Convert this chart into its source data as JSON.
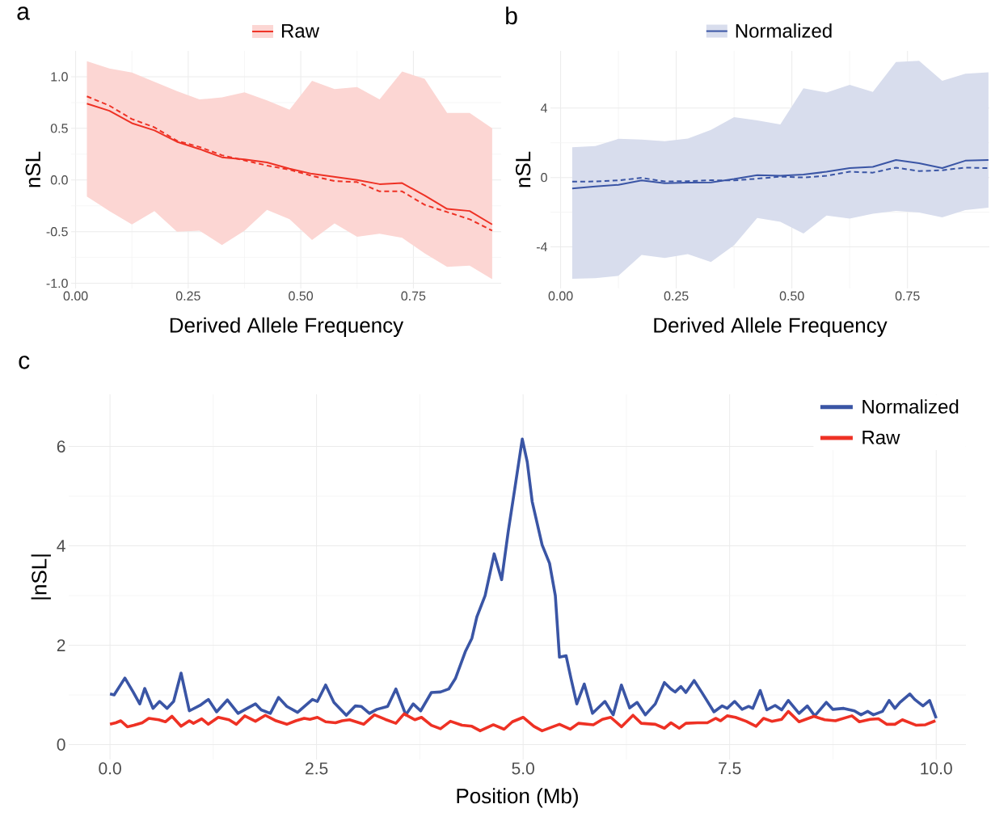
{
  "chart_data": [
    {
      "type": "line",
      "annotations": [
        "a"
      ],
      "xlabel": "Derived Allele Frequency",
      "ylabel": "nSL",
      "x": [
        0.025,
        0.075,
        0.125,
        0.175,
        0.225,
        0.275,
        0.325,
        0.375,
        0.425,
        0.475,
        0.525,
        0.575,
        0.625,
        0.675,
        0.725,
        0.775,
        0.825,
        0.875,
        0.925
      ],
      "series": [
        {
          "name": "Raw",
          "color": "#ee3124",
          "values": [
            0.74,
            0.67,
            0.55,
            0.48,
            0.37,
            0.3,
            0.22,
            0.2,
            0.17,
            0.11,
            0.06,
            0.03,
            0.0,
            -0.04,
            -0.03,
            -0.15,
            -0.28,
            -0.3,
            -0.43
          ],
          "upper": [
            1.15,
            1.08,
            1.04,
            0.95,
            0.86,
            0.78,
            0.8,
            0.85,
            0.77,
            0.68,
            0.96,
            0.88,
            0.9,
            0.78,
            1.05,
            0.98,
            0.65,
            0.65,
            0.5
          ],
          "lower": [
            -0.16,
            -0.3,
            -0.43,
            -0.3,
            -0.5,
            -0.49,
            -0.63,
            -0.49,
            -0.29,
            -0.38,
            -0.58,
            -0.42,
            -0.55,
            -0.52,
            -0.56,
            -0.71,
            -0.84,
            -0.83,
            -0.96
          ]
        },
        {
          "color": "#ee3124",
          "line_style": "dashed",
          "values": [
            0.81,
            0.72,
            0.59,
            0.51,
            0.38,
            0.32,
            0.24,
            0.19,
            0.14,
            0.1,
            0.04,
            -0.01,
            -0.02,
            -0.11,
            -0.11,
            -0.24,
            -0.31,
            -0.38,
            -0.49
          ]
        }
      ],
      "xlim": [
        -0.01,
        0.945
      ],
      "ylim": [
        -1.05,
        1.25
      ],
      "xticks": [
        {
          "value": 0,
          "label": "0.00"
        },
        {
          "value": 0.25,
          "label": "0.25"
        },
        {
          "value": 0.5,
          "label": "0.50"
        },
        {
          "value": 0.75,
          "label": "0.75"
        }
      ],
      "yticks": [
        {
          "value": -1,
          "label": "-1.0"
        },
        {
          "value": -0.5,
          "label": "-0.5"
        },
        {
          "value": 0,
          "label": "0.0"
        },
        {
          "value": 0.5,
          "label": "0.5"
        },
        {
          "value": 1,
          "label": "1.0"
        }
      ],
      "grid": true,
      "legend": "top"
    },
    {
      "type": "line",
      "annotations": [
        "b"
      ],
      "xlabel": "Derived Allele Frequency",
      "ylabel": "nSL",
      "x": [
        0.025,
        0.075,
        0.125,
        0.175,
        0.225,
        0.275,
        0.325,
        0.375,
        0.425,
        0.475,
        0.525,
        0.575,
        0.625,
        0.675,
        0.725,
        0.775,
        0.825,
        0.875,
        0.925
      ],
      "series": [
        {
          "name": "Normalized",
          "color": "#3a55a5",
          "values": [
            -0.63,
            -0.52,
            -0.42,
            -0.17,
            -0.33,
            -0.3,
            -0.28,
            -0.09,
            0.14,
            0.1,
            0.17,
            0.33,
            0.54,
            0.61,
            1.01,
            0.82,
            0.54,
            0.97,
            1.01
          ],
          "upper": [
            1.74,
            1.81,
            2.23,
            2.19,
            2.09,
            2.24,
            2.75,
            3.48,
            3.29,
            3.06,
            5.15,
            4.9,
            5.34,
            4.94,
            6.66,
            6.73,
            5.57,
            5.98,
            6.07
          ],
          "lower": [
            -5.84,
            -5.81,
            -5.67,
            -4.47,
            -4.64,
            -4.42,
            -4.87,
            -3.91,
            -2.33,
            -2.56,
            -3.23,
            -2.19,
            -2.37,
            -2.09,
            -1.93,
            -2.02,
            -2.3,
            -1.88,
            -1.74
          ]
        },
        {
          "color": "#3a55a5",
          "line_style": "dashed",
          "values": [
            -0.24,
            -0.23,
            -0.17,
            -0.02,
            -0.23,
            -0.21,
            -0.16,
            -0.17,
            -0.07,
            0.05,
            0.0,
            0.1,
            0.33,
            0.28,
            0.57,
            0.37,
            0.42,
            0.57,
            0.54
          ]
        }
      ],
      "xlim": [
        -0.022,
        0.927
      ],
      "ylim": [
        -6.4,
        7.3
      ],
      "xticks": [
        {
          "value": 0,
          "label": "0.00"
        },
        {
          "value": 0.25,
          "label": "0.25"
        },
        {
          "value": 0.5,
          "label": "0.50"
        },
        {
          "value": 0.75,
          "label": "0.75"
        }
      ],
      "yticks": [
        -4,
        0,
        4
      ],
      "grid": true,
      "legend": "top"
    },
    {
      "type": "line",
      "annotations": [
        "c"
      ],
      "xlabel": "Position (Mb)",
      "ylabel": "|nSL|",
      "series": [
        {
          "name": "Normalized",
          "color": "#3a55a5",
          "x": [
            0,
            0.05,
            0.18,
            0.28,
            0.36,
            0.42,
            0.52,
            0.6,
            0.69,
            0.77,
            0.86,
            0.96,
            1.09,
            1.19,
            1.29,
            1.42,
            1.55,
            1.66,
            1.76,
            1.83,
            1.94,
            2.04,
            2.14,
            2.27,
            2.45,
            2.51,
            2.61,
            2.71,
            2.86,
            2.97,
            3.04,
            3.14,
            3.23,
            3.36,
            3.46,
            3.58,
            3.67,
            3.76,
            3.89,
            4.0,
            4.1,
            4.18,
            4.3,
            4.38,
            4.44,
            4.54,
            4.65,
            4.74,
            4.82,
            4.9,
            4.99,
            5.05,
            5.11,
            5.23,
            5.32,
            5.39,
            5.44,
            5.52,
            5.58,
            5.65,
            5.74,
            5.84,
            5.99,
            6.09,
            6.19,
            6.29,
            6.38,
            6.48,
            6.6,
            6.71,
            6.79,
            6.84,
            6.91,
            6.97,
            7.07,
            7.16,
            7.31,
            7.41,
            7.47,
            7.56,
            7.65,
            7.73,
            7.78,
            7.87,
            7.95,
            8.05,
            8.13,
            8.21,
            8.34,
            8.44,
            8.53,
            8.67,
            8.75,
            8.88,
            9.01,
            9.09,
            9.17,
            9.24,
            9.35,
            9.43,
            9.5,
            9.56,
            9.68,
            9.74,
            9.84,
            9.92,
            10.0
          ],
          "values": [
            1.02,
            1.0,
            1.34,
            1.06,
            0.82,
            1.13,
            0.73,
            0.87,
            0.73,
            0.87,
            1.44,
            0.68,
            0.79,
            0.91,
            0.66,
            0.9,
            0.63,
            0.73,
            0.82,
            0.7,
            0.63,
            0.95,
            0.77,
            0.65,
            0.91,
            0.87,
            1.2,
            0.85,
            0.59,
            0.78,
            0.77,
            0.63,
            0.71,
            0.77,
            1.12,
            0.6,
            0.82,
            0.68,
            1.05,
            1.06,
            1.12,
            1.33,
            1.87,
            2.14,
            2.57,
            3.0,
            3.84,
            3.32,
            4.29,
            5.16,
            6.15,
            5.69,
            4.89,
            4.02,
            3.65,
            3.0,
            1.76,
            1.79,
            1.33,
            0.82,
            1.22,
            0.63,
            0.87,
            0.6,
            1.2,
            0.74,
            0.85,
            0.6,
            0.82,
            1.25,
            1.12,
            1.06,
            1.17,
            1.05,
            1.29,
            1.06,
            0.66,
            0.78,
            0.73,
            0.87,
            0.71,
            0.77,
            0.73,
            1.09,
            0.7,
            0.79,
            0.7,
            0.89,
            0.63,
            0.78,
            0.58,
            0.85,
            0.71,
            0.73,
            0.68,
            0.6,
            0.67,
            0.6,
            0.67,
            0.89,
            0.73,
            0.85,
            1.02,
            0.91,
            0.78,
            0.89,
            0.53
          ]
        },
        {
          "name": "Raw",
          "color": "#ee3124",
          "x": [
            0,
            0.07,
            0.13,
            0.21,
            0.29,
            0.39,
            0.47,
            0.59,
            0.67,
            0.75,
            0.86,
            0.96,
            1.01,
            1.11,
            1.19,
            1.31,
            1.44,
            1.53,
            1.63,
            1.76,
            1.88,
            2.01,
            2.14,
            2.25,
            2.35,
            2.42,
            2.51,
            2.61,
            2.73,
            2.81,
            2.9,
            3.07,
            3.2,
            3.33,
            3.46,
            3.56,
            3.69,
            3.77,
            3.89,
            4.0,
            4.12,
            4.26,
            4.38,
            4.48,
            4.64,
            4.77,
            4.87,
            5.0,
            5.13,
            5.23,
            5.36,
            5.44,
            5.57,
            5.67,
            5.85,
            5.96,
            6.06,
            6.19,
            6.33,
            6.43,
            6.6,
            6.71,
            6.79,
            6.89,
            6.97,
            7.11,
            7.23,
            7.33,
            7.39,
            7.47,
            7.57,
            7.7,
            7.82,
            7.91,
            8.01,
            8.13,
            8.21,
            8.34,
            8.52,
            8.65,
            8.78,
            8.98,
            9.07,
            9.2,
            9.3,
            9.4,
            9.5,
            9.59,
            9.76,
            9.87,
            9.99
          ],
          "values": [
            0.41,
            0.44,
            0.48,
            0.36,
            0.39,
            0.44,
            0.53,
            0.5,
            0.46,
            0.57,
            0.37,
            0.48,
            0.43,
            0.52,
            0.41,
            0.55,
            0.5,
            0.41,
            0.58,
            0.47,
            0.59,
            0.48,
            0.41,
            0.48,
            0.53,
            0.51,
            0.55,
            0.46,
            0.44,
            0.48,
            0.5,
            0.41,
            0.6,
            0.51,
            0.43,
            0.62,
            0.5,
            0.55,
            0.39,
            0.32,
            0.47,
            0.39,
            0.37,
            0.28,
            0.4,
            0.31,
            0.46,
            0.55,
            0.37,
            0.28,
            0.36,
            0.41,
            0.31,
            0.43,
            0.4,
            0.51,
            0.55,
            0.36,
            0.59,
            0.43,
            0.41,
            0.33,
            0.44,
            0.33,
            0.43,
            0.44,
            0.44,
            0.53,
            0.48,
            0.58,
            0.55,
            0.47,
            0.37,
            0.53,
            0.47,
            0.51,
            0.67,
            0.46,
            0.57,
            0.5,
            0.48,
            0.58,
            0.46,
            0.51,
            0.52,
            0.41,
            0.41,
            0.5,
            0.39,
            0.4,
            0.48
          ]
        }
      ],
      "xlim": [
        -0.5,
        10.36
      ],
      "ylim": [
        -0.3,
        7.05
      ],
      "xticks": [
        {
          "value": 0,
          "label": "0.0"
        },
        {
          "value": 2.5,
          "label": "2.5"
        },
        {
          "value": 5,
          "label": "5.0"
        },
        {
          "value": 7.5,
          "label": "7.5"
        },
        {
          "value": 10,
          "label": "10.0"
        }
      ],
      "yticks": [
        0,
        2,
        4,
        6
      ],
      "grid": true,
      "legend": "top right"
    }
  ]
}
